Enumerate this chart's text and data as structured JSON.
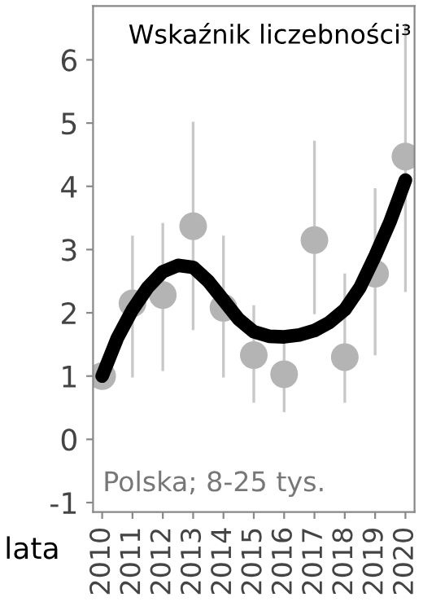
{
  "chart_data": {
    "type": "scatter",
    "title": "Wskaźnik liczebności³",
    "xlabel": "lata",
    "annotations": [
      "Polska; 8-25 tys."
    ],
    "xlim": [
      2009.7,
      2020.3
    ],
    "xticks": [
      2010,
      2011,
      2012,
      2013,
      2014,
      2015,
      2016,
      2017,
      2018,
      2019,
      2020
    ],
    "ylim": [
      -1.15,
      6.85
    ],
    "yticks": [
      -1,
      0,
      1,
      2,
      3,
      4,
      5,
      6
    ],
    "grid": false,
    "legend": false,
    "series": [
      {
        "marker": "circle",
        "color": "#b4b4b4",
        "x": [
          2010,
          2011,
          2012,
          2013,
          2014,
          2015,
          2016,
          2017,
          2018,
          2019,
          2020
        ],
        "values": [
          1.0,
          2.15,
          2.28,
          3.37,
          2.08,
          1.33,
          1.03,
          3.15,
          1.3,
          2.62,
          4.47
        ],
        "errors": [
          null,
          [
            1.0,
            3.2
          ],
          [
            1.1,
            3.4
          ],
          [
            1.75,
            5.0
          ],
          [
            1.0,
            3.2
          ],
          [
            0.6,
            2.1
          ],
          [
            0.45,
            1.6
          ],
          [
            2.0,
            4.7
          ],
          [
            0.6,
            2.6
          ],
          [
            1.35,
            3.95
          ],
          [
            2.35,
            6.55
          ]
        ]
      },
      {
        "type": "line",
        "color": "#000000",
        "x": [
          2010,
          2010.5,
          2011,
          2011.5,
          2012,
          2012.5,
          2013,
          2013.5,
          2014,
          2014.5,
          2015,
          2015.5,
          2016,
          2016.5,
          2017,
          2017.5,
          2018,
          2018.5,
          2019,
          2019.5,
          2020
        ],
        "values": [
          1.0,
          1.6,
          2.05,
          2.4,
          2.65,
          2.75,
          2.72,
          2.5,
          2.2,
          1.9,
          1.7,
          1.63,
          1.62,
          1.65,
          1.72,
          1.85,
          2.05,
          2.4,
          2.9,
          3.45,
          4.1
        ]
      }
    ]
  }
}
